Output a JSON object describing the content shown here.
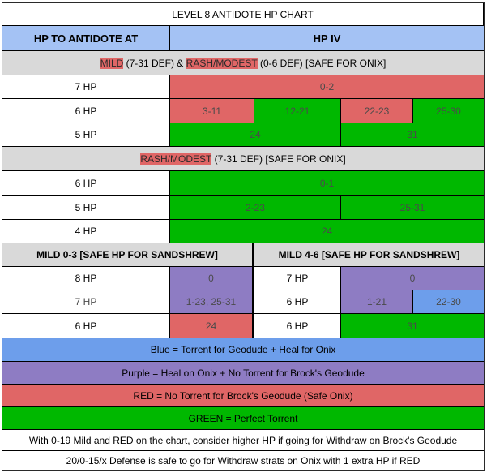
{
  "title": "LEVEL 8 ANTIDOTE HP CHART",
  "header": {
    "left": "HP TO ANTIDOTE AT",
    "right": "HP IV"
  },
  "section1": {
    "nature_a": "MILD",
    "text_a": " (7-31 DEF) & ",
    "nature_b": "RASH/MODEST",
    "text_b": " (0-6 DEF) [SAFE FOR ONIX]",
    "rows": [
      {
        "hp": "7 HP",
        "cells": [
          {
            "label": "0-2",
            "color": "red"
          }
        ]
      },
      {
        "hp": "6 HP",
        "cells": [
          {
            "label": "3-11",
            "color": "red"
          },
          {
            "label": "12-21",
            "color": "green"
          },
          {
            "label": "22-23",
            "color": "red"
          },
          {
            "label": "25-30",
            "color": "green"
          }
        ]
      },
      {
        "hp": "5 HP",
        "cells": [
          {
            "label": "24",
            "color": "green"
          },
          {
            "label": "31",
            "color": "green"
          }
        ]
      }
    ]
  },
  "section2": {
    "nature": "RASH/MODEST",
    "text": " (7-31 DEF) [SAFE FOR ONIX]",
    "rows": [
      {
        "hp": "6 HP",
        "cells": [
          {
            "label": "0-1",
            "color": "green"
          }
        ]
      },
      {
        "hp": "5 HP",
        "cells": [
          {
            "label": "2-23",
            "color": "green"
          },
          {
            "label": "25-31",
            "color": "green"
          }
        ]
      },
      {
        "hp": "4 HP",
        "cells": [
          {
            "label": "24",
            "color": "green"
          }
        ]
      }
    ]
  },
  "section3": {
    "left_header": "MILD 0-3 [SAFE HP FOR SANDSHREW]",
    "right_header": "MILD 4-6 [SAFE HP FOR SANDSHREW]",
    "left_rows": [
      {
        "hp": "8 HP",
        "label": "0",
        "color": "purple"
      },
      {
        "hp": "7 HP",
        "label": "1-23, 25-31",
        "color": "purple"
      },
      {
        "hp": "6 HP",
        "label": "24",
        "color": "red"
      }
    ],
    "right_rows": [
      {
        "hp": "7 HP",
        "cells": [
          {
            "label": "0",
            "color": "purple"
          }
        ]
      },
      {
        "hp": "6 HP",
        "cells": [
          {
            "label": "1-21",
            "color": "purple"
          },
          {
            "label": "22-30",
            "color": "blue"
          }
        ]
      },
      {
        "hp": "6 HP",
        "cells": [
          {
            "label": "31",
            "color": "green"
          }
        ]
      }
    ]
  },
  "legend": {
    "blue": "Blue = Torrent for Geodude + Heal for Onix",
    "purple": "Purple = Heal on Onix + No Torrent for Brock's Geodude",
    "red": "RED = No Torrent for Brock's Geodude (Safe Onix)",
    "green": "GREEN = Perfect Torrent"
  },
  "notes": [
    "With 0-19 Mild and RED on the chart, consider higher HP if going for Withdraw on Brock's Geodude",
    "20/0-15/x Defense is safe to go for Withdraw strats on Onix with 1 extra HP if RED"
  ],
  "colors": {
    "red": "#e06666",
    "green": "#00b800",
    "purple": "#8e7cc3",
    "blue": "#6d9eeb",
    "header_blue": "#a4c2f4",
    "section_gray": "#d9d9d9",
    "white": "#ffffff"
  }
}
